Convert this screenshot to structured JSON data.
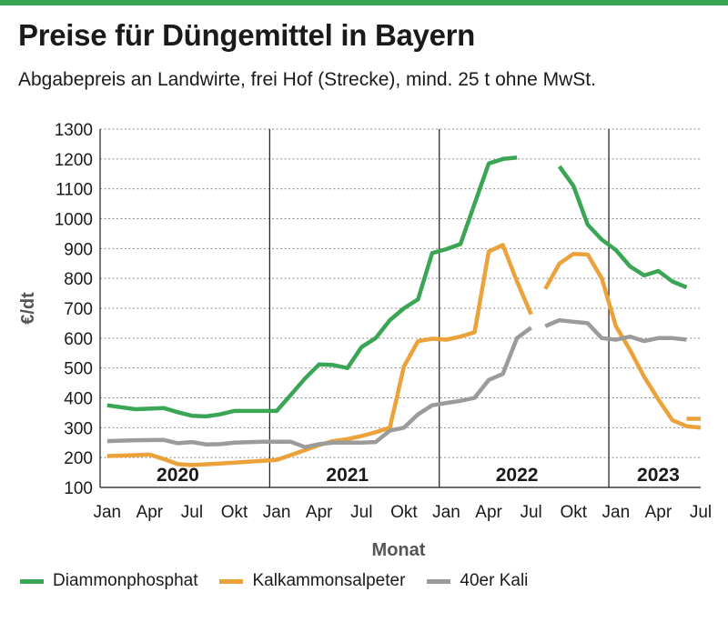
{
  "header": {
    "title": "Preise für Düngemittel in Bayern",
    "subtitle": "Abgabepreis an Landwirte, frei Hof (Strecke), mind. 25 t ohne MwSt."
  },
  "colors": {
    "accent": "#3aa655",
    "green": "#3aa655",
    "orange": "#eba23a",
    "gray": "#9b9b9b",
    "axis": "#1a1a1a"
  },
  "chart_data": {
    "type": "line",
    "title": "Preise für Düngemittel in Bayern",
    "subtitle": "Abgabepreis an Landwirte, frei Hof (Strecke), mind. 25 t ohne MwSt.",
    "xlabel": "Monat",
    "ylabel": "€/dt",
    "ylim": [
      100,
      1300
    ],
    "yticks": [
      100,
      200,
      300,
      400,
      500,
      600,
      700,
      800,
      900,
      1000,
      1100,
      1200,
      1300
    ],
    "xlim": [
      "2020-01",
      "2023-07"
    ],
    "xticks": [
      {
        "x": "2020-01",
        "label": "Jan"
      },
      {
        "x": "2020-04",
        "label": "Apr"
      },
      {
        "x": "2020-07",
        "label": "Jul"
      },
      {
        "x": "2020-10",
        "label": "Okt"
      },
      {
        "x": "2021-01",
        "label": "Jan"
      },
      {
        "x": "2021-04",
        "label": "Apr"
      },
      {
        "x": "2021-07",
        "label": "Jul"
      },
      {
        "x": "2021-10",
        "label": "Okt"
      },
      {
        "x": "2022-01",
        "label": "Jan"
      },
      {
        "x": "2022-04",
        "label": "Apr"
      },
      {
        "x": "2022-07",
        "label": "Jul"
      },
      {
        "x": "2022-10",
        "label": "Okt"
      },
      {
        "x": "2023-01",
        "label": "Jan"
      },
      {
        "x": "2023-04",
        "label": "Apr"
      },
      {
        "x": "2023-07",
        "label": "Jul"
      }
    ],
    "year_labels": [
      {
        "x": "2020-06",
        "label": "2020"
      },
      {
        "x": "2021-06",
        "label": "2021"
      },
      {
        "x": "2022-06",
        "label": "2022"
      },
      {
        "x": "2023-04",
        "label": "2023"
      }
    ],
    "year_dividers": [
      "2020-12",
      "2021-12",
      "2022-12"
    ],
    "grid": "horizontal",
    "legend_position": "bottom",
    "series": [
      {
        "name": "Diammonphosphat",
        "color_key": "green",
        "segments": [
          [
            [
              "2020-01",
              375
            ],
            [
              "2020-03",
              362
            ],
            [
              "2020-05",
              366
            ],
            [
              "2020-06",
              352
            ],
            [
              "2020-07",
              340
            ],
            [
              "2020-08",
              338
            ],
            [
              "2020-09",
              345
            ],
            [
              "2020-10",
              356
            ],
            [
              "2020-11",
              356
            ],
            [
              "2020-12",
              356
            ],
            [
              "2021-01",
              356
            ],
            [
              "2021-02",
              410
            ],
            [
              "2021-03",
              465
            ],
            [
              "2021-04",
              512
            ],
            [
              "2021-05",
              510
            ],
            [
              "2021-06",
              500
            ],
            [
              "2021-07",
              570
            ],
            [
              "2021-08",
              600
            ],
            [
              "2021-09",
              660
            ],
            [
              "2021-10",
              700
            ],
            [
              "2021-11",
              730
            ],
            [
              "2021-12",
              885
            ],
            [
              "2022-01",
              898
            ],
            [
              "2022-02",
              915
            ],
            [
              "2022-03",
              1050
            ],
            [
              "2022-04",
              1185
            ],
            [
              "2022-05",
              1200
            ],
            [
              "2022-06",
              1205
            ]
          ],
          [
            [
              "2022-09",
              1175
            ],
            [
              "2022-10",
              1110
            ],
            [
              "2022-11",
              980
            ],
            [
              "2022-12",
              930
            ],
            [
              "2023-01",
              895
            ],
            [
              "2023-02",
              840
            ],
            [
              "2023-03",
              810
            ],
            [
              "2023-04",
              825
            ],
            [
              "2023-05",
              790
            ],
            [
              "2023-06",
              770
            ]
          ]
        ]
      },
      {
        "name": "Kalkammonsalpeter",
        "color_key": "orange",
        "segments": [
          [
            [
              "2020-01",
              205
            ],
            [
              "2020-03",
              208
            ],
            [
              "2020-04",
              210
            ],
            [
              "2020-05",
              195
            ],
            [
              "2020-06",
              178
            ],
            [
              "2020-07",
              175
            ],
            [
              "2020-09",
              180
            ],
            [
              "2020-11",
              186
            ],
            [
              "2021-01",
              192
            ],
            [
              "2021-03",
              225
            ],
            [
              "2021-04",
              242
            ],
            [
              "2021-05",
              255
            ],
            [
              "2021-06",
              262
            ],
            [
              "2021-07",
              272
            ],
            [
              "2021-08",
              285
            ],
            [
              "2021-09",
              300
            ],
            [
              "2021-10",
              505
            ],
            [
              "2021-11",
              590
            ],
            [
              "2021-12",
              598
            ],
            [
              "2022-01",
              595
            ],
            [
              "2022-02",
              605
            ],
            [
              "2022-03",
              620
            ],
            [
              "2022-04",
              890
            ],
            [
              "2022-05",
              912
            ],
            [
              "2022-06",
              790
            ],
            [
              "2022-07",
              680
            ]
          ],
          [
            [
              "2022-08",
              765
            ],
            [
              "2022-09",
              850
            ],
            [
              "2022-10",
              882
            ],
            [
              "2022-11",
              880
            ],
            [
              "2022-12",
              800
            ],
            [
              "2023-01",
              640
            ],
            [
              "2023-02",
              560
            ],
            [
              "2023-03",
              470
            ],
            [
              "2023-04",
              395
            ],
            [
              "2023-05",
              325
            ],
            [
              "2023-06",
              305
            ],
            [
              "2023-07",
              300
            ]
          ],
          [
            [
              "2023-06",
              330
            ],
            [
              "2023-07",
              330
            ]
          ]
        ]
      },
      {
        "name": "40er Kali",
        "color_key": "gray",
        "segments": [
          [
            [
              "2020-01",
              255
            ],
            [
              "2020-03",
              258
            ],
            [
              "2020-05",
              259
            ],
            [
              "2020-06",
              248
            ],
            [
              "2020-07",
              252
            ],
            [
              "2020-08",
              244
            ],
            [
              "2020-09",
              245
            ],
            [
              "2020-10",
              250
            ],
            [
              "2020-12",
              253
            ],
            [
              "2021-01",
              253
            ],
            [
              "2021-02",
              253
            ],
            [
              "2021-03",
              235
            ],
            [
              "2021-04",
              245
            ],
            [
              "2021-05",
              250
            ],
            [
              "2021-07",
              250
            ],
            [
              "2021-08",
              252
            ],
            [
              "2021-09",
              290
            ],
            [
              "2021-10",
              300
            ],
            [
              "2021-11",
              345
            ],
            [
              "2021-12",
              375
            ],
            [
              "2022-01",
              383
            ],
            [
              "2022-02",
              390
            ],
            [
              "2022-03",
              400
            ],
            [
              "2022-04",
              460
            ],
            [
              "2022-05",
              480
            ],
            [
              "2022-06",
              600
            ],
            [
              "2022-07",
              635
            ]
          ],
          [
            [
              "2022-08",
              640
            ],
            [
              "2022-09",
              660
            ],
            [
              "2022-10",
              655
            ],
            [
              "2022-11",
              650
            ],
            [
              "2022-12",
              600
            ],
            [
              "2023-01",
              595
            ],
            [
              "2023-02",
              605
            ],
            [
              "2023-03",
              590
            ],
            [
              "2023-04",
              600
            ],
            [
              "2023-05",
              600
            ],
            [
              "2023-06",
              595
            ]
          ]
        ]
      }
    ]
  }
}
